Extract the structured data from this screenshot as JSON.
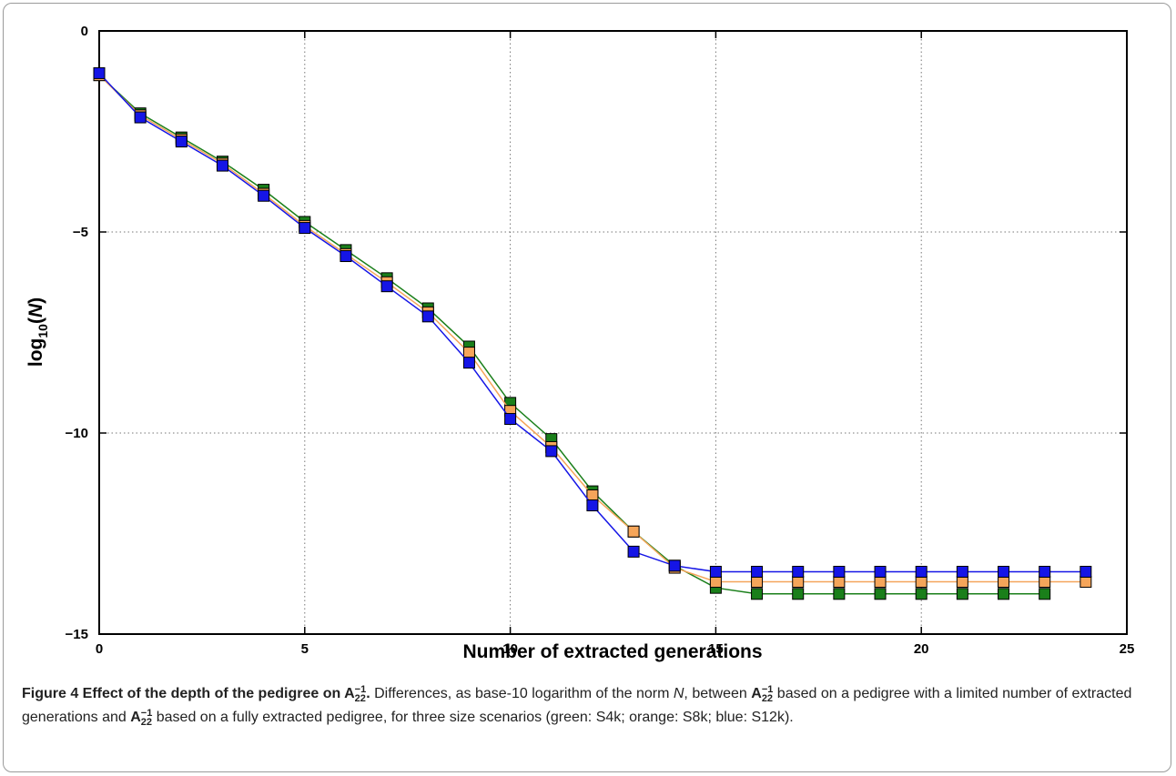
{
  "chart_data": {
    "type": "line",
    "xlabel": "Number of extracted generations",
    "ylabel_base": "log",
    "ylabel_sub": "10",
    "ylabel_open": "(",
    "ylabel_var": "N",
    "ylabel_close": ")",
    "xlim": [
      0,
      25
    ],
    "ylim": [
      -15,
      0
    ],
    "xticks": [
      0,
      5,
      10,
      15,
      20,
      25
    ],
    "xtick_labels": [
      "0",
      "5",
      "10",
      "15",
      "20",
      "25"
    ],
    "yticks": [
      0,
      -5,
      -10,
      -15
    ],
    "ytick_labels": [
      "0",
      "−5",
      "−10",
      "−15"
    ],
    "grid": true,
    "series": [
      {
        "color": "#1a7f1a",
        "x": [
          0,
          1,
          2,
          3,
          4,
          5,
          6,
          7,
          8,
          9,
          10,
          11,
          12,
          13,
          14,
          15,
          16,
          17,
          18,
          19,
          20,
          21,
          22,
          23
        ],
        "values": [
          -1.1,
          -2.05,
          -2.65,
          -3.25,
          -3.95,
          -4.75,
          -5.45,
          -6.15,
          -6.9,
          -7.85,
          -9.25,
          -10.15,
          -11.45,
          -12.45,
          -13.3,
          -13.85,
          -14.0,
          -14.0,
          -14.0,
          -14.0,
          -14.0,
          -14.0,
          -14.0,
          -14.0
        ]
      },
      {
        "color": "#f5a55a",
        "x": [
          0,
          1,
          2,
          3,
          4,
          5,
          6,
          7,
          8,
          9,
          10,
          11,
          12,
          13,
          14,
          15,
          16,
          17,
          18,
          19,
          20,
          21,
          22,
          23,
          24
        ],
        "values": [
          -1.1,
          -2.1,
          -2.7,
          -3.3,
          -4.05,
          -4.85,
          -5.55,
          -6.25,
          -7.0,
          -8.0,
          -9.45,
          -10.35,
          -11.55,
          -12.45,
          -13.35,
          -13.7,
          -13.7,
          -13.7,
          -13.7,
          -13.7,
          -13.7,
          -13.7,
          -13.7,
          -13.7,
          -13.7
        ]
      },
      {
        "color": "#1515e6",
        "x": [
          0,
          1,
          2,
          3,
          4,
          5,
          6,
          7,
          8,
          9,
          10,
          11,
          12,
          13,
          14,
          15,
          16,
          17,
          18,
          19,
          20,
          21,
          22,
          23,
          24
        ],
        "values": [
          -1.05,
          -2.15,
          -2.75,
          -3.35,
          -4.1,
          -4.9,
          -5.6,
          -6.35,
          -7.1,
          -8.25,
          -9.65,
          -10.45,
          -11.8,
          -12.95,
          -13.3,
          -13.45,
          -13.45,
          -13.45,
          -13.45,
          -13.45,
          -13.45,
          -13.45,
          -13.45,
          -13.45,
          -13.45
        ]
      }
    ]
  },
  "caption": {
    "figure_label": "Figure 4",
    "title": " Effect of the depth of the pedigree on ",
    "mat_letter": "A",
    "mat_sub": "22",
    "mat_sup": "−1",
    "title_end": ".",
    "text1": " Differences, as base-10 logarithm of the norm ",
    "norm_var": "N",
    "text2": ", between ",
    "text3": " based on a pedigree with a limited number of extracted generations and ",
    "text4": " based on a fully extracted pedigree, for three size scenarios (green: S4k; orange: S8k; blue: S12k)."
  }
}
